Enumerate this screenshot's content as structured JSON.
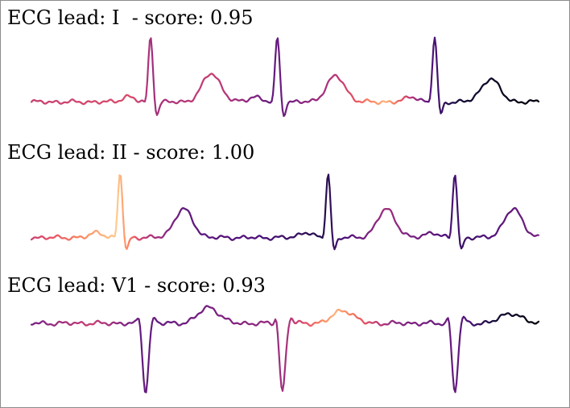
{
  "chart_data": [
    {
      "type": "line",
      "title": "ECG lead: I  - score: 0.95",
      "lead": "I",
      "score": 0.95,
      "colormap": "magma",
      "x_range": [
        0,
        1
      ],
      "y_range": [
        -0.35,
        1.0
      ],
      "baseline": 0.0,
      "series": [
        {
          "wave": "P",
          "center": 0.255,
          "amplitude": 0.28,
          "width": 0.018
        },
        {
          "wave": "QRS",
          "center": 0.235,
          "amplitude": 0.95,
          "width": 0.0055
        },
        {
          "wave": "T",
          "center": 0.355,
          "amplitude": 0.42,
          "width": 0.02
        }
      ],
      "beats": [
        {
          "r_peak_x": 0.235,
          "t_peak_x": 0.355,
          "t_amp": 0.42
        },
        {
          "r_peak_x": 0.485,
          "t_peak_x": 0.6,
          "t_amp": 0.38
        },
        {
          "r_peak_x": 0.795,
          "t_peak_x": 0.905,
          "t_amp": 0.34
        }
      ],
      "color_stops": [
        {
          "x": 0.0,
          "value": 0.55
        },
        {
          "x": 0.2,
          "value": 0.6
        },
        {
          "x": 0.24,
          "value": 0.45
        },
        {
          "x": 0.36,
          "value": 0.55
        },
        {
          "x": 0.48,
          "value": 0.3
        },
        {
          "x": 0.6,
          "value": 0.5
        },
        {
          "x": 0.7,
          "value": 0.85
        },
        {
          "x": 0.79,
          "value": 0.25
        },
        {
          "x": 0.85,
          "value": 0.1
        },
        {
          "x": 1.0,
          "value": 0.02
        }
      ]
    },
    {
      "type": "line",
      "title": "ECG lead: II - score: 1.00",
      "lead": "II",
      "score": 1.0,
      "colormap": "magma",
      "x_range": [
        0,
        1
      ],
      "y_range": [
        -0.35,
        1.0
      ],
      "baseline": 0.0,
      "beats": [
        {
          "r_peak_x": 0.175,
          "t_peak_x": 0.3,
          "t_amp": 0.42
        },
        {
          "r_peak_x": 0.585,
          "t_peak_x": 0.7,
          "t_amp": 0.42
        },
        {
          "r_peak_x": 0.835,
          "t_peak_x": 0.95,
          "t_amp": 0.42
        }
      ],
      "color_stops": [
        {
          "x": 0.0,
          "value": 0.55
        },
        {
          "x": 0.1,
          "value": 0.75
        },
        {
          "x": 0.17,
          "value": 0.9
        },
        {
          "x": 0.22,
          "value": 0.55
        },
        {
          "x": 0.3,
          "value": 0.3
        },
        {
          "x": 0.45,
          "value": 0.25
        },
        {
          "x": 0.58,
          "value": 0.15
        },
        {
          "x": 0.7,
          "value": 0.45
        },
        {
          "x": 0.85,
          "value": 0.2
        },
        {
          "x": 1.0,
          "value": 0.35
        }
      ]
    },
    {
      "type": "line",
      "title": "ECG lead: V1 - score: 0.93",
      "lead": "V1",
      "score": 0.93,
      "colormap": "magma",
      "x_range": [
        0,
        1
      ],
      "y_range": [
        -1.0,
        0.3
      ],
      "baseline": 0.0,
      "beats": [
        {
          "s_trough_x": 0.225,
          "t_peak_x": 0.35,
          "t_amp": 0.22
        },
        {
          "s_trough_x": 0.495,
          "t_peak_x": 0.615,
          "t_amp": 0.18
        },
        {
          "s_trough_x": 0.835,
          "t_peak_x": 0.945,
          "t_amp": 0.14
        }
      ],
      "color_stops": [
        {
          "x": 0.0,
          "value": 0.35
        },
        {
          "x": 0.12,
          "value": 0.55
        },
        {
          "x": 0.22,
          "value": 0.3
        },
        {
          "x": 0.35,
          "value": 0.35
        },
        {
          "x": 0.5,
          "value": 0.45
        },
        {
          "x": 0.6,
          "value": 0.85
        },
        {
          "x": 0.72,
          "value": 0.4
        },
        {
          "x": 0.84,
          "value": 0.3
        },
        {
          "x": 0.92,
          "value": 0.1
        },
        {
          "x": 1.0,
          "value": 0.02
        }
      ]
    }
  ]
}
